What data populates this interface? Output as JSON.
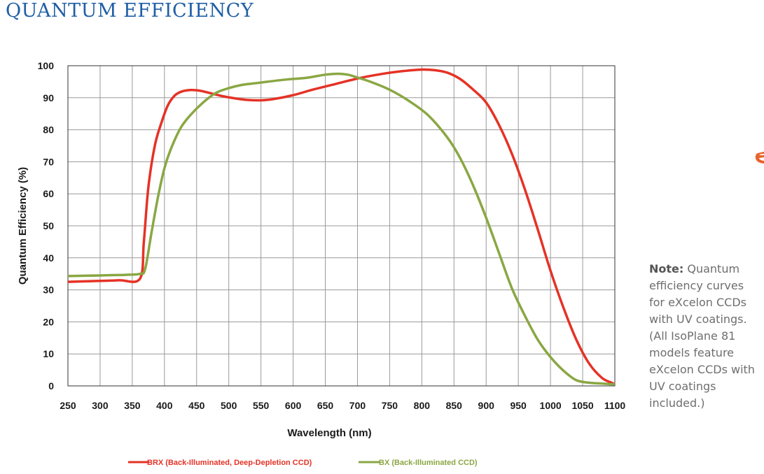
{
  "page": {
    "title": "QUANTUM EFFICIENCY",
    "note_label": "Note:",
    "note_text": "Quantum efficiency curves for eXcelon CCDs with UV coatings. (All IsoPlane 81 models feature eXcelon CCDs with UV coatings included.)",
    "edge_icon": "partial-orange-logo-icon"
  },
  "chart_data": {
    "type": "line",
    "title": "QUANTUM EFFICIENCY",
    "xlabel": "Wavelength (nm)",
    "ylabel": "Quantum Efficiency (%)",
    "xlim": [
      250,
      1100
    ],
    "ylim": [
      0,
      100
    ],
    "xticks": [
      250,
      300,
      350,
      400,
      450,
      500,
      550,
      600,
      650,
      700,
      750,
      800,
      850,
      900,
      950,
      1000,
      1050,
      1100
    ],
    "yticks": [
      0,
      10,
      20,
      30,
      40,
      50,
      60,
      70,
      80,
      90,
      100
    ],
    "grid": true,
    "legend_position": "bottom",
    "series": [
      {
        "name": "BRX (Back-Illuminated, Deep-Depletion CCD)",
        "color": "#e53226",
        "x": [
          250,
          300,
          330,
          362,
          368,
          375,
          385,
          395,
          405,
          415,
          425,
          440,
          455,
          470,
          490,
          510,
          530,
          550,
          570,
          600,
          630,
          660,
          700,
          740,
          770,
          800,
          820,
          840,
          860,
          880,
          900,
          920,
          940,
          960,
          980,
          1000,
          1020,
          1040,
          1060,
          1080,
          1095,
          1100
        ],
        "y": [
          32.5,
          32.8,
          33.0,
          33.5,
          45,
          62,
          75,
          82,
          87.5,
          90.5,
          91.8,
          92.4,
          92.2,
          91.5,
          90.5,
          89.8,
          89.3,
          89.2,
          89.6,
          90.8,
          92.5,
          94,
          96,
          97.5,
          98.3,
          98.8,
          98.6,
          97.8,
          95.8,
          92.5,
          88.5,
          81.5,
          72.5,
          61.5,
          49,
          36,
          24.5,
          14.5,
          7,
          2.5,
          1,
          0.5
        ]
      },
      {
        "name": "BX (Back-Illuminated CCD)",
        "color": "#8aa743",
        "x": [
          250,
          300,
          320,
          340,
          362,
          370,
          380,
          390,
          400,
          410,
          425,
          440,
          460,
          480,
          500,
          520,
          540,
          560,
          590,
          620,
          650,
          670,
          685,
          700,
          720,
          750,
          780,
          810,
          840,
          860,
          880,
          900,
          920,
          940,
          960,
          980,
          1000,
          1020,
          1040,
          1060,
          1075,
          1090,
          1100
        ],
        "y": [
          34.3,
          34.5,
          34.6,
          34.7,
          35,
          36.5,
          48,
          59,
          68,
          74,
          80.5,
          84.5,
          88.5,
          91.5,
          93,
          94,
          94.5,
          95,
          95.7,
          96.2,
          97.2,
          97.5,
          97.2,
          96.3,
          95,
          92.5,
          89,
          84.5,
          77.5,
          71,
          62.5,
          52.5,
          41.5,
          30.5,
          22,
          14.5,
          9,
          4.8,
          1.8,
          1.0,
          0.8,
          0.6,
          0.5
        ]
      }
    ]
  }
}
